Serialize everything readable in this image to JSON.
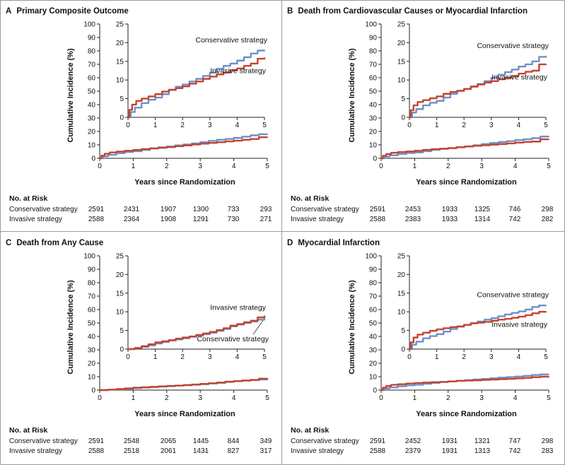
{
  "x_axis_label": "Years since Randomization",
  "y_axis_label": "Cumulative Incidence (%)",
  "risk_header": "No. at Risk",
  "risk_row_labels": [
    "Conservative strategy",
    "Invasive strategy"
  ],
  "colors": {
    "conservative": "#6f8fc9",
    "invasive": "#c4432f",
    "frame": "#9a9a9a"
  },
  "chart_data": [
    {
      "type": "line",
      "panel_letter": "A",
      "title": "Primary Composite Outcome",
      "xlabel": "Years since Randomization",
      "ylabel": "Cumulative Incidence (%)",
      "xlim": [
        0,
        5
      ],
      "ylim": [
        0,
        100
      ],
      "xticks": [
        0,
        1,
        2,
        3,
        4,
        5
      ],
      "yticks": [
        0,
        10,
        20,
        30,
        40,
        50,
        60,
        70,
        80,
        90,
        100
      ],
      "inset": {
        "xlim": [
          0,
          5
        ],
        "ylim": [
          0,
          25
        ],
        "xticks": [
          0,
          1,
          2,
          3,
          4,
          5
        ],
        "yticks": [
          0,
          5,
          10,
          15,
          20,
          25
        ]
      },
      "series": [
        {
          "name": "Conservative strategy",
          "color": "#6f8fc9",
          "x": [
            0,
            0.1,
            0.25,
            0.5,
            0.75,
            1.0,
            1.25,
            1.5,
            1.75,
            2.0,
            2.25,
            2.5,
            2.75,
            3.0,
            3.25,
            3.5,
            3.75,
            4.0,
            4.25,
            4.5,
            4.75,
            5.0
          ],
          "y": [
            0,
            1.4,
            2.6,
            3.8,
            4.7,
            5.3,
            6.2,
            7.3,
            8.2,
            8.8,
            9.6,
            10.3,
            11.1,
            12.0,
            13.0,
            13.8,
            14.4,
            15.2,
            16.1,
            17.1,
            17.9,
            18.0
          ]
        },
        {
          "name": "Invasive strategy",
          "color": "#c4432f",
          "x": [
            0,
            0.05,
            0.15,
            0.3,
            0.5,
            0.75,
            1.0,
            1.25,
            1.5,
            1.75,
            2.0,
            2.25,
            2.5,
            2.75,
            3.0,
            3.25,
            3.5,
            3.75,
            4.0,
            4.25,
            4.5,
            4.75,
            5.0
          ],
          "y": [
            0,
            2.0,
            3.4,
            4.4,
            5.0,
            5.6,
            6.2,
            6.9,
            7.4,
            7.8,
            8.3,
            9.0,
            9.6,
            10.3,
            10.9,
            11.5,
            12.0,
            12.6,
            13.1,
            13.8,
            14.4,
            15.7,
            16.0
          ]
        }
      ],
      "risk": {
        "times": [
          0,
          1,
          2,
          3,
          4,
          5
        ],
        "conservative": [
          2591,
          2431,
          1907,
          1300,
          733,
          293
        ],
        "invasive": [
          2588,
          2364,
          1908,
          1291,
          730,
          271
        ]
      }
    },
    {
      "type": "line",
      "panel_letter": "B",
      "title": "Death from Cardiovascular Causes or Myocardial Infarction",
      "xlabel": "Years since Randomization",
      "ylabel": "Cumulative Incidence (%)",
      "xlim": [
        0,
        5
      ],
      "ylim": [
        0,
        100
      ],
      "xticks": [
        0,
        1,
        2,
        3,
        4,
        5
      ],
      "yticks": [
        0,
        10,
        20,
        30,
        40,
        50,
        60,
        70,
        80,
        90,
        100
      ],
      "inset": {
        "xlim": [
          0,
          5
        ],
        "ylim": [
          0,
          25
        ],
        "xticks": [
          0,
          1,
          2,
          3,
          4,
          5
        ],
        "yticks": [
          0,
          5,
          10,
          15,
          20,
          25
        ]
      },
      "series": [
        {
          "name": "Conservative strategy",
          "color": "#6f8fc9",
          "x": [
            0,
            0.1,
            0.25,
            0.5,
            0.75,
            1.0,
            1.25,
            1.5,
            1.75,
            2.0,
            2.25,
            2.5,
            2.75,
            3.0,
            3.25,
            3.5,
            3.75,
            4.0,
            4.25,
            4.5,
            4.75,
            5.0
          ],
          "y": [
            0,
            1.3,
            2.2,
            3.2,
            3.9,
            4.4,
            5.3,
            6.3,
            7.1,
            7.6,
            8.3,
            8.9,
            9.7,
            10.6,
            11.4,
            12.1,
            12.8,
            13.6,
            14.2,
            15.0,
            16.2,
            16.5
          ]
        },
        {
          "name": "Invasive strategy",
          "color": "#c4432f",
          "x": [
            0,
            0.05,
            0.15,
            0.3,
            0.5,
            0.75,
            1.0,
            1.25,
            1.5,
            1.75,
            2.0,
            2.25,
            2.5,
            2.75,
            3.0,
            3.25,
            3.5,
            3.75,
            4.0,
            4.25,
            4.5,
            4.75,
            5.0
          ],
          "y": [
            0,
            1.9,
            3.2,
            4.1,
            4.6,
            5.1,
            5.6,
            6.3,
            6.8,
            7.1,
            7.6,
            8.2,
            8.8,
            9.3,
            9.7,
            10.2,
            10.6,
            11.1,
            11.7,
            12.2,
            12.5,
            14.2,
            14.3
          ]
        }
      ],
      "risk": {
        "times": [
          0,
          1,
          2,
          3,
          4,
          5
        ],
        "conservative": [
          2591,
          2453,
          1933,
          1325,
          746,
          298
        ],
        "invasive": [
          2588,
          2383,
          1933,
          1314,
          742,
          282
        ]
      }
    },
    {
      "type": "line",
      "panel_letter": "C",
      "title": "Death from Any Cause",
      "xlabel": "Years since Randomization",
      "ylabel": "Cumulative Incidence (%)",
      "xlim": [
        0,
        5
      ],
      "ylim": [
        0,
        100
      ],
      "xticks": [
        0,
        1,
        2,
        3,
        4,
        5
      ],
      "yticks": [
        0,
        10,
        20,
        30,
        40,
        50,
        60,
        70,
        80,
        90,
        100
      ],
      "inset": {
        "xlim": [
          0,
          5
        ],
        "ylim": [
          0,
          25
        ],
        "xticks": [
          0,
          1,
          2,
          3,
          4,
          5
        ],
        "yticks": [
          0,
          5,
          10,
          15,
          20,
          25
        ]
      },
      "series": [
        {
          "name": "Conservative strategy",
          "color": "#6f8fc9",
          "x": [
            0,
            0.25,
            0.5,
            0.75,
            1.0,
            1.25,
            1.5,
            1.75,
            2.0,
            2.25,
            2.5,
            2.75,
            3.0,
            3.25,
            3.5,
            3.75,
            4.0,
            4.25,
            4.5,
            4.75,
            5.0
          ],
          "y": [
            0,
            0.3,
            0.6,
            1.0,
            1.5,
            1.9,
            2.3,
            2.6,
            2.9,
            3.3,
            3.6,
            4.0,
            4.4,
            4.9,
            5.4,
            6.1,
            6.6,
            7.0,
            7.4,
            7.9,
            8.3
          ]
        },
        {
          "name": "Invasive strategy",
          "color": "#c4432f",
          "x": [
            0,
            0.25,
            0.5,
            0.75,
            1.0,
            1.25,
            1.5,
            1.75,
            2.0,
            2.25,
            2.5,
            2.75,
            3.0,
            3.25,
            3.5,
            3.75,
            4.0,
            4.25,
            4.5,
            4.75,
            5.0
          ],
          "y": [
            0,
            0.3,
            0.8,
            1.3,
            1.8,
            2.1,
            2.4,
            2.8,
            3.1,
            3.4,
            3.8,
            4.2,
            4.6,
            5.1,
            5.6,
            6.3,
            6.7,
            7.2,
            7.6,
            8.5,
            9.0
          ]
        }
      ],
      "risk": {
        "times": [
          0,
          1,
          2,
          3,
          4,
          5
        ],
        "conservative": [
          2591,
          2548,
          2065,
          1445,
          844,
          349
        ],
        "invasive": [
          2588,
          2518,
          2061,
          1431,
          827,
          317
        ]
      }
    },
    {
      "type": "line",
      "panel_letter": "D",
      "title": "Myocardial Infarction",
      "xlabel": "Years since Randomization",
      "ylabel": "Cumulative Incidence (%)",
      "xlim": [
        0,
        5
      ],
      "ylim": [
        0,
        100
      ],
      "xticks": [
        0,
        1,
        2,
        3,
        4,
        5
      ],
      "yticks": [
        0,
        10,
        20,
        30,
        40,
        50,
        60,
        70,
        80,
        90,
        100
      ],
      "inset": {
        "xlim": [
          0,
          5
        ],
        "ylim": [
          0,
          25
        ],
        "xticks": [
          0,
          1,
          2,
          3,
          4,
          5
        ],
        "yticks": [
          0,
          5,
          10,
          15,
          20,
          25
        ]
      },
      "series": [
        {
          "name": "Conservative strategy",
          "color": "#6f8fc9",
          "x": [
            0,
            0.1,
            0.25,
            0.5,
            0.75,
            1.0,
            1.25,
            1.5,
            1.75,
            2.0,
            2.25,
            2.5,
            2.75,
            3.0,
            3.25,
            3.5,
            3.75,
            4.0,
            4.25,
            4.5,
            4.75,
            5.0
          ],
          "y": [
            0,
            1.2,
            2.0,
            2.9,
            3.5,
            4.0,
            4.7,
            5.4,
            6.0,
            6.5,
            7.0,
            7.4,
            7.9,
            8.3,
            8.8,
            9.3,
            9.7,
            10.1,
            10.6,
            11.3,
            11.7,
            11.8
          ]
        },
        {
          "name": "Invasive strategy",
          "color": "#c4432f",
          "x": [
            0,
            0.05,
            0.15,
            0.3,
            0.5,
            0.75,
            1.0,
            1.25,
            1.5,
            1.75,
            2.0,
            2.25,
            2.5,
            2.75,
            3.0,
            3.25,
            3.5,
            3.75,
            4.0,
            4.25,
            4.5,
            4.75,
            5.0
          ],
          "y": [
            0,
            1.8,
            3.1,
            3.9,
            4.4,
            4.9,
            5.3,
            5.6,
            5.9,
            6.1,
            6.5,
            6.9,
            7.1,
            7.3,
            7.6,
            7.9,
            8.1,
            8.4,
            8.7,
            9.1,
            9.6,
            10.0,
            10.1
          ]
        }
      ],
      "risk": {
        "times": [
          0,
          1,
          2,
          3,
          4,
          5
        ],
        "conservative": [
          2591,
          2452,
          1931,
          1321,
          747,
          298
        ],
        "invasive": [
          2588,
          2379,
          1931,
          1313,
          742,
          283
        ]
      }
    }
  ]
}
